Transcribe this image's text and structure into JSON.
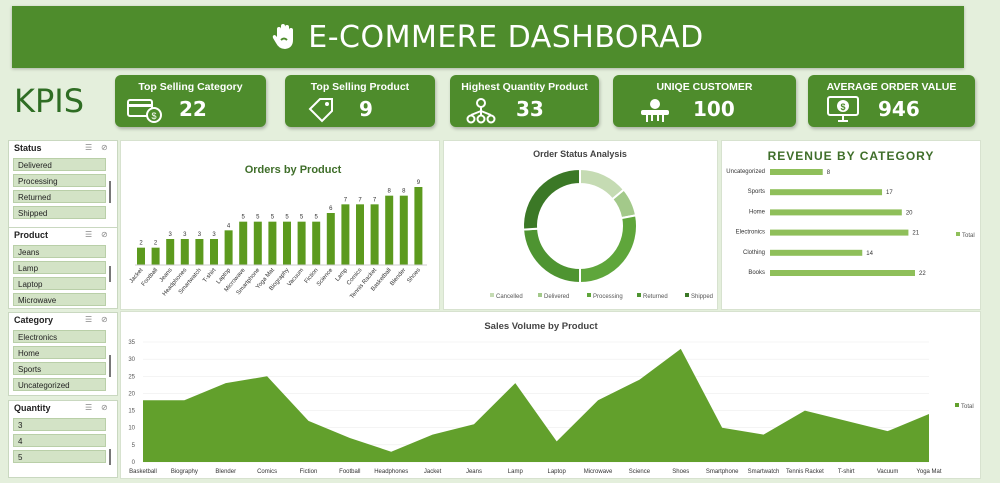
{
  "header": {
    "title": "E-COMMERE DASHBORAD",
    "icon": "hand-icon"
  },
  "kpis_label": "KPIS",
  "kpis": [
    {
      "label": "Top Selling Category",
      "value": "22",
      "icon": "payment-card-icon"
    },
    {
      "label": "Top Selling Product",
      "value": "9",
      "icon": "price-tag-icon"
    },
    {
      "label": "Highest Quantity Product",
      "value": "33",
      "icon": "network-icon"
    },
    {
      "label": "UNIQE CUSTOMER",
      "value": "100",
      "icon": "customer-icon"
    },
    {
      "label": "AVERAGE ORDER VALUE",
      "value": "946",
      "icon": "money-monitor-icon"
    }
  ],
  "slicers": [
    {
      "title": "Status",
      "items": [
        "Delivered",
        "Processing",
        "Returned",
        "Shipped"
      ]
    },
    {
      "title": "Product",
      "items": [
        "Jeans",
        "Lamp",
        "Laptop",
        "Microwave"
      ]
    },
    {
      "title": "Category",
      "items": [
        "Electronics",
        "Home",
        "Sports",
        "Uncategorized"
      ]
    },
    {
      "title": "Quantity",
      "items": [
        "3",
        "4",
        "5"
      ]
    }
  ],
  "chart_data": [
    {
      "type": "bar",
      "title": "Orders by Product",
      "categories": [
        "Jacket",
        "Football",
        "Jeans",
        "Headphones",
        "Smartwatch",
        "T-shirt",
        "Laptop",
        "Microwave",
        "Smartphone",
        "Yoga Mat",
        "Biography",
        "Vacuum",
        "Fiction",
        "Science",
        "Lamp",
        "Comics",
        "Tennis Racket",
        "Basketball",
        "Blender",
        "Shoes"
      ],
      "values": [
        2,
        2,
        3,
        3,
        3,
        3,
        4,
        5,
        5,
        5,
        5,
        5,
        5,
        6,
        7,
        7,
        7,
        8,
        8,
        9
      ],
      "ylim": [
        0,
        10
      ],
      "color": "#5c9a1e"
    },
    {
      "type": "pie",
      "title": "Order Status Analysis",
      "categories": [
        "Cancelled",
        "Delivered",
        "Processing",
        "Returned",
        "Shipped"
      ],
      "values": [
        14,
        8,
        28,
        24,
        26
      ],
      "colors": [
        "#c5dbb3",
        "#a3c98a",
        "#5fa63b",
        "#4e9431",
        "#3b7826"
      ],
      "legend": "bottom"
    },
    {
      "type": "bar",
      "orientation": "horizontal",
      "title": "REVENUE BY CATEGORY",
      "categories": [
        "Uncategorized",
        "Sports",
        "Home",
        "Electronics",
        "Clothing",
        "Books"
      ],
      "values": [
        8,
        17,
        20,
        21,
        14,
        22
      ],
      "series_name": "Total",
      "xlim": [
        0,
        22
      ],
      "color": "#8fbf5a"
    },
    {
      "type": "area",
      "title": "Sales Volume by Product",
      "categories": [
        "Basketball",
        "Biography",
        "Blender",
        "Comics",
        "Fiction",
        "Football",
        "Headphones",
        "Jacket",
        "Jeans",
        "Lamp",
        "Laptop",
        "Microwave",
        "Science",
        "Shoes",
        "Smartphone",
        "Smartwatch",
        "Tennis Racket",
        "T-shirt",
        "Vacuum",
        "Yoga Mat"
      ],
      "values": [
        18,
        18,
        23,
        25,
        12,
        7,
        3,
        8,
        11,
        23,
        6,
        18,
        24,
        33,
        10,
        8,
        15,
        12,
        9,
        14
      ],
      "series_name": "Total",
      "ylim": [
        0,
        35
      ],
      "yticks": [
        0,
        5,
        10,
        15,
        20,
        25,
        30,
        35
      ],
      "color": "#62a02c"
    }
  ]
}
